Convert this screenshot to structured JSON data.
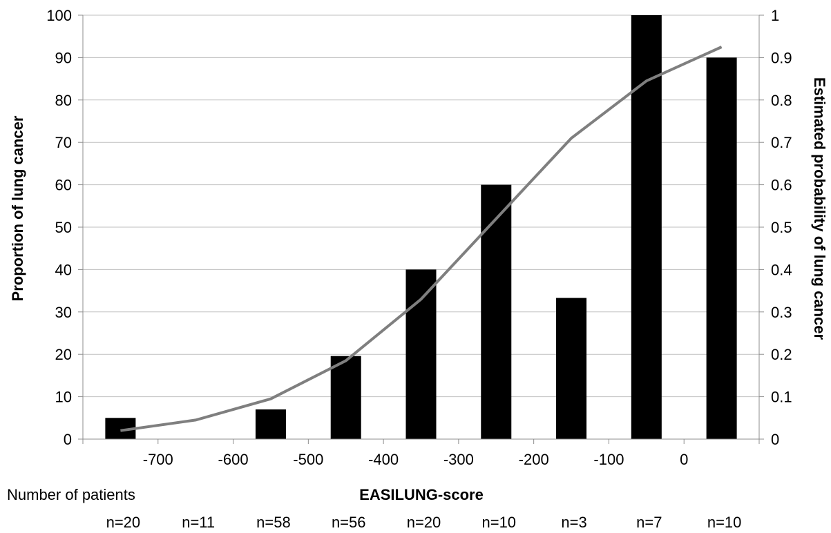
{
  "chart_data": {
    "type": "bar",
    "title": "",
    "xlabel": "EASILUNG-score",
    "ylabel": "Proportion of lung cancer",
    "y2label": "Estimated probability of lung cancer",
    "xlim": [
      -800,
      100
    ],
    "ylim": [
      0,
      100
    ],
    "y2lim": [
      0,
      1
    ],
    "grid": true,
    "x_ticks": [
      "-700",
      "-600",
      "-500",
      "-400",
      "-300",
      "-200",
      "-100",
      "0"
    ],
    "y_ticks": [
      "0",
      "10",
      "20",
      "30",
      "40",
      "50",
      "60",
      "70",
      "80",
      "90",
      "100"
    ],
    "y2_ticks": [
      "0",
      "0.1",
      "0.2",
      "0.3",
      "0.4",
      "0.5",
      "0.6",
      "0.7",
      "0.8",
      "0.9",
      "1"
    ],
    "series": [
      {
        "kind": "bar",
        "axis": "left",
        "color": "#000000",
        "x": [
          -750,
          -650,
          -550,
          -450,
          -350,
          -250,
          -150,
          -50,
          50
        ],
        "values": [
          5,
          0,
          7,
          19.6,
          40,
          60,
          33.3,
          100,
          90
        ]
      },
      {
        "kind": "line",
        "axis": "right",
        "color": "#7f7f7f",
        "x": [
          -750,
          -650,
          -550,
          -450,
          -350,
          -250,
          -150,
          -50,
          50
        ],
        "values": [
          0.02,
          0.045,
          0.095,
          0.185,
          0.33,
          0.52,
          0.71,
          0.845,
          0.925
        ]
      }
    ],
    "patients_label": "Number of patients",
    "patients_counts": [
      "n=20",
      "n=11",
      "n=58",
      "n=56",
      "n=20",
      "n=10",
      "n=3",
      "n=7",
      "n=10"
    ]
  }
}
